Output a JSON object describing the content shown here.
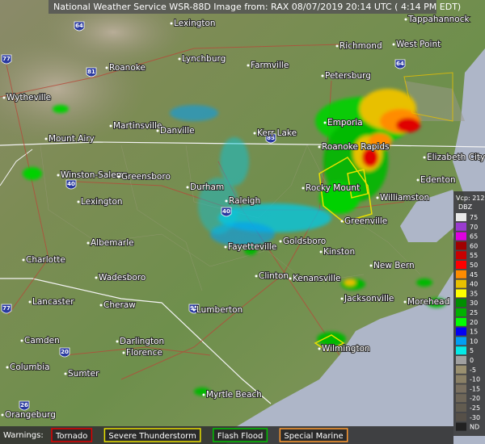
{
  "header": {
    "title": "National Weather Service WSR-88D Image from: RAX 08/07/2019 20:14 UTC ( 4:14 PM EDT)"
  },
  "cities": [
    "Lexington",
    "Tappahannock",
    "Richmond",
    "West Point",
    "Roanoke",
    "Lynchburg",
    "Farmville",
    "Petersburg",
    "Wytheville",
    "Martinsville",
    "Danville",
    "Kerr Lake",
    "Emporia",
    "Roanoke Rapids",
    "Mount Airy",
    "Winston-Salem",
    "Greensboro",
    "Elizabeth City",
    "Edenton",
    "Durham",
    "Raleigh",
    "Rocky Mount",
    "Williamston",
    "Lexington",
    "Greenville",
    "Albemarle",
    "Goldsboro",
    "Kinston",
    "Charlotte",
    "New Bern",
    "Wadesboro",
    "Fayetteville",
    "Clinton",
    "Kenansville",
    "Lancaster",
    "Cheraw",
    "Lumberton",
    "Jacksonville",
    "Morehead",
    "Camden",
    "Darlington",
    "Florence",
    "Wilmington",
    "Columbia",
    "Sumter",
    "Myrtle Beach",
    "Orangeburg"
  ],
  "shields": [
    "64",
    "77",
    "81",
    "64",
    "85",
    "40",
    "40",
    "95",
    "77",
    "20",
    "26"
  ],
  "legend": {
    "vcp": "Vcp: 212",
    "unit": "DBZ",
    "items": [
      {
        "label": "75",
        "color": "#e8e8e8"
      },
      {
        "label": "70",
        "color": "#9a3ccf"
      },
      {
        "label": "65",
        "color": "#e000e0"
      },
      {
        "label": "60",
        "color": "#a00000"
      },
      {
        "label": "55",
        "color": "#c80000"
      },
      {
        "label": "50",
        "color": "#ff0000"
      },
      {
        "label": "45",
        "color": "#ff8c00"
      },
      {
        "label": "40",
        "color": "#e8c000"
      },
      {
        "label": "35",
        "color": "#ffff00"
      },
      {
        "label": "30",
        "color": "#008e00"
      },
      {
        "label": "25",
        "color": "#01b000"
      },
      {
        "label": "20",
        "color": "#02fd02"
      },
      {
        "label": "15",
        "color": "#0300f4"
      },
      {
        "label": "10",
        "color": "#019ff4"
      },
      {
        "label": "5",
        "color": "#04e9e7"
      },
      {
        "label": "0",
        "color": "#a0a0a0"
      },
      {
        "label": "-5",
        "color": "#9a9070"
      },
      {
        "label": "-10",
        "color": "#8a8066"
      },
      {
        "label": "-15",
        "color": "#7a7060"
      },
      {
        "label": "-20",
        "color": "#6e6658"
      },
      {
        "label": "-25",
        "color": "#625c50"
      },
      {
        "label": "-30",
        "color": "#565048"
      },
      {
        "label": "ND",
        "color": "#222222"
      }
    ]
  },
  "warnings": {
    "label": "Warnings:",
    "items": [
      {
        "label": "Tornado",
        "color": "#e00000"
      },
      {
        "label": "Severe Thunderstorm",
        "color": "#e8e000"
      },
      {
        "label": "Flash Flood",
        "color": "#00c000"
      },
      {
        "label": "Special Marine",
        "color": "#ff9a30"
      }
    ]
  }
}
